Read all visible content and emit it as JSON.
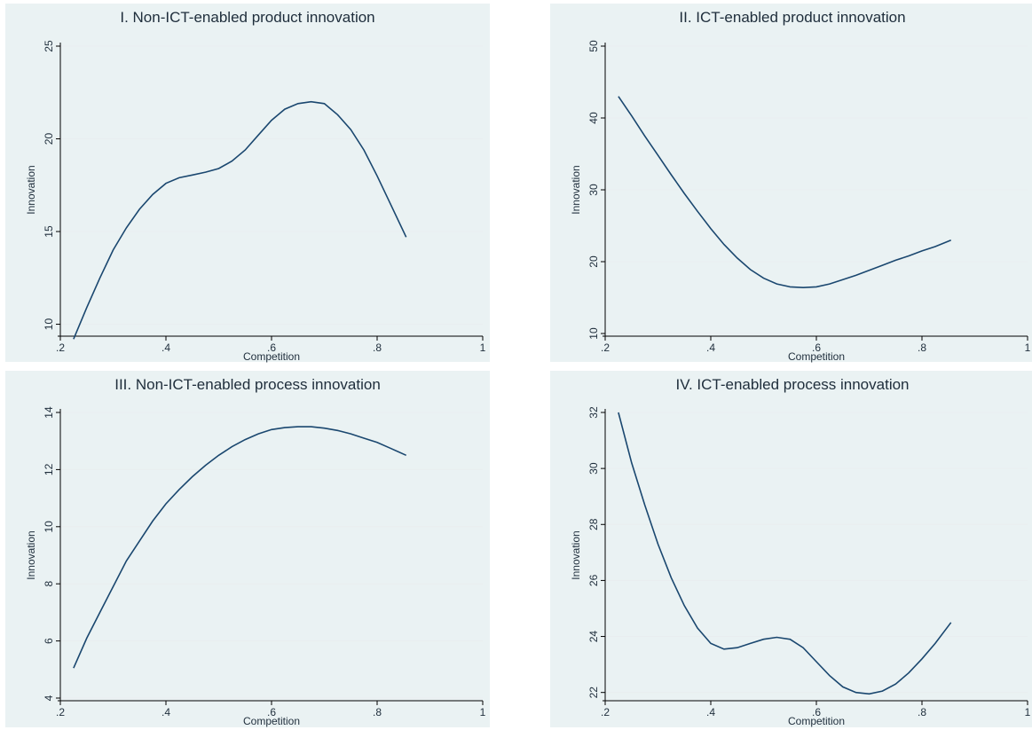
{
  "chart_data": [
    {
      "type": "line",
      "title": "I. Non-ICT-enabled product innovation",
      "xlabel": "Competition",
      "ylabel": "Innovation",
      "xlim": [
        0.2,
        1
      ],
      "ylim": [
        9.5,
        25
      ],
      "xticks": [
        0.2,
        0.4,
        0.6,
        0.8,
        1
      ],
      "xtick_labels": [
        ".2",
        ".4",
        ".6",
        ".8",
        "1"
      ],
      "yticks": [
        10,
        15,
        20,
        25
      ],
      "ytick_labels": [
        "10",
        "15",
        "20",
        "25"
      ],
      "grid": true,
      "series": [
        {
          "x": [
            0.225,
            0.25,
            0.275,
            0.3,
            0.325,
            0.35,
            0.375,
            0.4,
            0.425,
            0.45,
            0.475,
            0.5,
            0.525,
            0.55,
            0.575,
            0.6,
            0.625,
            0.65,
            0.675,
            0.7,
            0.725,
            0.75,
            0.775,
            0.8,
            0.825,
            0.855
          ],
          "y": [
            9.2,
            10.9,
            12.5,
            14,
            15.2,
            16.2,
            17,
            17.6,
            17.9,
            18.05,
            18.2,
            18.4,
            18.8,
            19.4,
            20.2,
            21,
            21.6,
            21.9,
            22,
            21.9,
            21.3,
            20.5,
            19.4,
            18,
            16.5,
            14.7
          ]
        }
      ]
    },
    {
      "type": "line",
      "title": "II. ICT-enabled product innovation",
      "xlabel": "Competition",
      "ylabel": "Innovation",
      "xlim": [
        0.2,
        1
      ],
      "ylim": [
        10,
        50
      ],
      "xticks": [
        0.2,
        0.4,
        0.6,
        0.8,
        1
      ],
      "xtick_labels": [
        ".2",
        ".4",
        ".6",
        ".8",
        "1"
      ],
      "yticks": [
        10,
        20,
        30,
        40,
        50
      ],
      "ytick_labels": [
        "10",
        "20",
        "30",
        "40",
        "50"
      ],
      "grid": true,
      "series": [
        {
          "x": [
            0.225,
            0.25,
            0.275,
            0.3,
            0.325,
            0.35,
            0.375,
            0.4,
            0.425,
            0.45,
            0.475,
            0.5,
            0.525,
            0.55,
            0.575,
            0.6,
            0.625,
            0.65,
            0.675,
            0.7,
            0.725,
            0.75,
            0.775,
            0.8,
            0.825,
            0.855
          ],
          "y": [
            43,
            40.3,
            37.5,
            34.8,
            32.1,
            29.5,
            27,
            24.6,
            22.4,
            20.5,
            18.9,
            17.7,
            16.9,
            16.5,
            16.4,
            16.5,
            16.9,
            17.5,
            18.1,
            18.8,
            19.5,
            20.2,
            20.8,
            21.5,
            22.1,
            23
          ]
        }
      ]
    },
    {
      "type": "line",
      "title": "III. Non-ICT-enabled process innovation",
      "xlabel": "Competition",
      "ylabel": "Innovation",
      "xlim": [
        0.2,
        1
      ],
      "ylim": [
        4,
        14
      ],
      "xticks": [
        0.2,
        0.4,
        0.6,
        0.8,
        1
      ],
      "xtick_labels": [
        ".2",
        ".4",
        ".6",
        ".8",
        "1"
      ],
      "yticks": [
        4,
        6,
        8,
        10,
        12,
        14
      ],
      "ytick_labels": [
        "4",
        "6",
        "8",
        "10",
        "12",
        "14"
      ],
      "grid": true,
      "series": [
        {
          "x": [
            0.225,
            0.25,
            0.275,
            0.3,
            0.325,
            0.35,
            0.375,
            0.4,
            0.425,
            0.45,
            0.475,
            0.5,
            0.525,
            0.55,
            0.575,
            0.6,
            0.625,
            0.65,
            0.675,
            0.7,
            0.725,
            0.75,
            0.775,
            0.8,
            0.825,
            0.855
          ],
          "y": [
            5.05,
            6.1,
            7,
            7.9,
            8.8,
            9.5,
            10.2,
            10.8,
            11.3,
            11.75,
            12.15,
            12.5,
            12.8,
            13.05,
            13.25,
            13.4,
            13.47,
            13.5,
            13.5,
            13.45,
            13.37,
            13.25,
            13.1,
            12.95,
            12.75,
            12.5
          ]
        }
      ]
    },
    {
      "type": "line",
      "title": "IV. ICT-enabled process innovation",
      "xlabel": "Competition",
      "ylabel": "Innovation",
      "xlim": [
        0.2,
        1
      ],
      "ylim": [
        21.8,
        32
      ],
      "xticks": [
        0.2,
        0.4,
        0.6,
        0.8,
        1
      ],
      "xtick_labels": [
        ".2",
        ".4",
        ".6",
        ".8",
        "1"
      ],
      "yticks": [
        22,
        24,
        26,
        28,
        30,
        32
      ],
      "ytick_labels": [
        "22",
        "24",
        "26",
        "28",
        "30",
        "32"
      ],
      "grid": true,
      "series": [
        {
          "x": [
            0.225,
            0.25,
            0.275,
            0.3,
            0.325,
            0.35,
            0.375,
            0.4,
            0.425,
            0.45,
            0.475,
            0.5,
            0.525,
            0.55,
            0.575,
            0.6,
            0.625,
            0.65,
            0.675,
            0.7,
            0.725,
            0.75,
            0.775,
            0.8,
            0.825,
            0.855
          ],
          "y": [
            32,
            30.2,
            28.7,
            27.3,
            26.1,
            25.1,
            24.3,
            23.75,
            23.55,
            23.6,
            23.75,
            23.9,
            23.97,
            23.9,
            23.6,
            23.1,
            22.6,
            22.2,
            22,
            21.95,
            22.05,
            22.3,
            22.7,
            23.2,
            23.75,
            24.5
          ]
        }
      ]
    }
  ]
}
